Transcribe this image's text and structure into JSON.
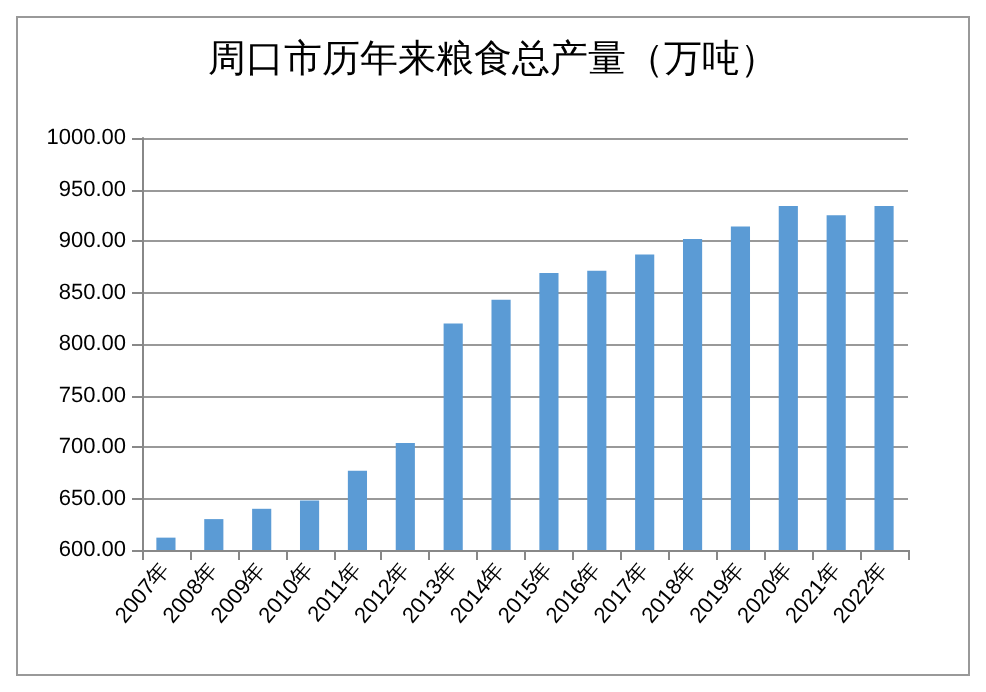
{
  "chart_data": {
    "type": "bar",
    "title": "周口市历年来粮食总产量（万吨）",
    "categories": [
      "2007年",
      "2008年",
      "2009年",
      "2010年",
      "2011年",
      "2012年",
      "2013年",
      "2014年",
      "2015年",
      "2016年",
      "2017年",
      "2018年",
      "2019年",
      "2020年",
      "2021年",
      "2022年"
    ],
    "values": [
      612,
      630,
      640,
      648,
      677,
      704,
      820,
      843,
      869,
      871,
      887,
      902,
      914,
      934,
      925,
      934
    ],
    "color": "#5b9bd5",
    "ylim": [
      600,
      1000
    ],
    "yticks": [
      {
        "value": 600,
        "label": "600.00"
      },
      {
        "value": 650,
        "label": "650.00"
      },
      {
        "value": 700,
        "label": "700.00"
      },
      {
        "value": 750,
        "label": "750.00"
      },
      {
        "value": 800,
        "label": "800.00"
      },
      {
        "value": 850,
        "label": "850.00"
      },
      {
        "value": 900,
        "label": "900.00"
      },
      {
        "value": 950,
        "label": "950.00"
      },
      {
        "value": 1000,
        "label": "1000.00"
      }
    ],
    "grid": "y"
  }
}
